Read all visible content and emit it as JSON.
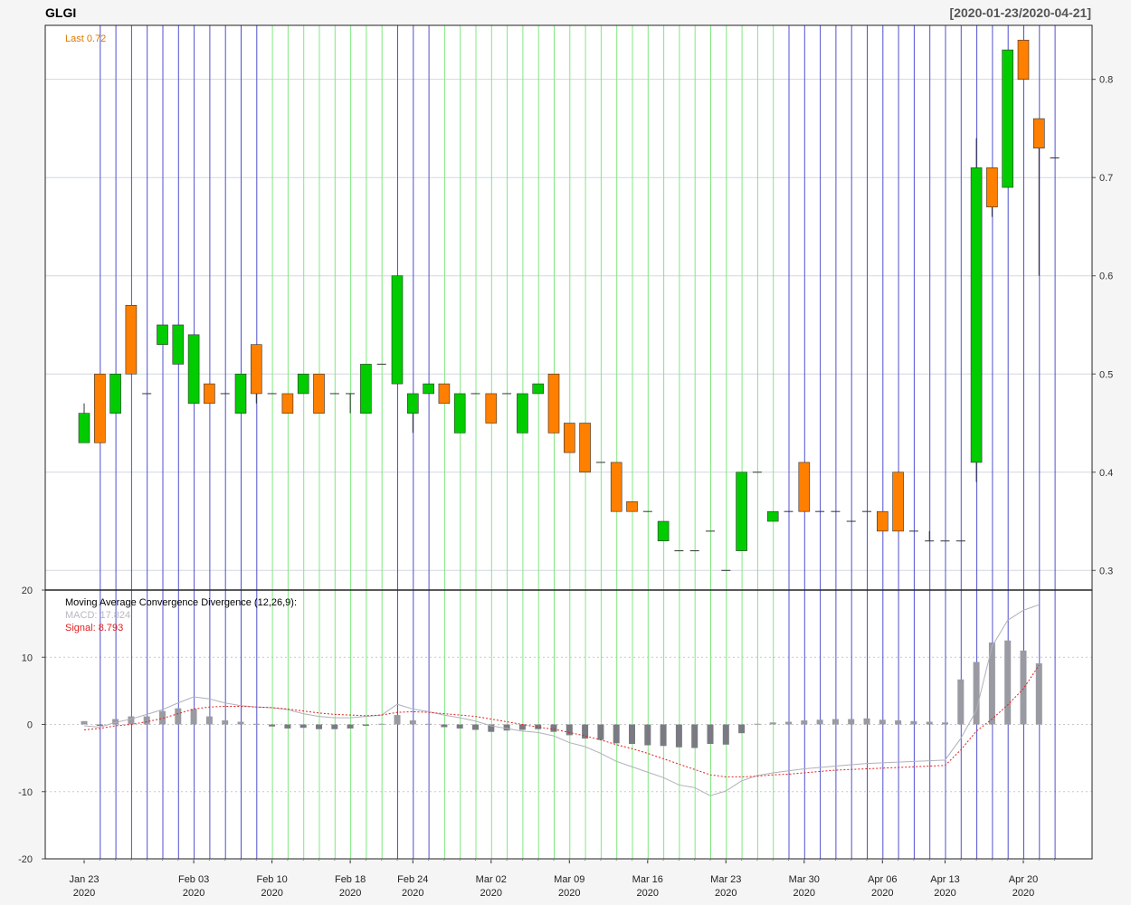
{
  "chart_data": {
    "type": "candlestick",
    "symbol": "GLGI",
    "range_label": "[2020-01-23/2020-04-21]",
    "last_label": "Last 0.72",
    "price_ylim": [
      0.28,
      0.855
    ],
    "price_ticks": [
      "0.3",
      "0.4",
      "0.5",
      "0.6",
      "0.7",
      "0.8"
    ],
    "candles": [
      {
        "o": 0.43,
        "h": 0.47,
        "l": 0.43,
        "c": 0.46
      },
      {
        "o": 0.5,
        "h": 0.5,
        "l": 0.43,
        "c": 0.43
      },
      {
        "o": 0.46,
        "h": 0.5,
        "l": 0.46,
        "c": 0.5
      },
      {
        "o": 0.57,
        "h": 0.57,
        "l": 0.5,
        "c": 0.5
      },
      {
        "o": 0.48,
        "h": 0.48,
        "l": 0.48,
        "c": 0.48
      },
      {
        "o": 0.53,
        "h": 0.55,
        "l": 0.53,
        "c": 0.55
      },
      {
        "o": 0.51,
        "h": 0.55,
        "l": 0.51,
        "c": 0.55
      },
      {
        "o": 0.47,
        "h": 0.54,
        "l": 0.47,
        "c": 0.54
      },
      {
        "o": 0.49,
        "h": 0.49,
        "l": 0.47,
        "c": 0.47
      },
      {
        "o": 0.48,
        "h": 0.48,
        "l": 0.48,
        "c": 0.48
      },
      {
        "o": 0.46,
        "h": 0.5,
        "l": 0.46,
        "c": 0.5
      },
      {
        "o": 0.53,
        "h": 0.53,
        "l": 0.47,
        "c": 0.48
      },
      {
        "o": 0.48,
        "h": 0.48,
        "l": 0.48,
        "c": 0.48
      },
      {
        "o": 0.48,
        "h": 0.48,
        "l": 0.46,
        "c": 0.46
      },
      {
        "o": 0.48,
        "h": 0.5,
        "l": 0.48,
        "c": 0.5
      },
      {
        "o": 0.5,
        "h": 0.5,
        "l": 0.46,
        "c": 0.46
      },
      {
        "o": 0.48,
        "h": 0.48,
        "l": 0.48,
        "c": 0.48
      },
      {
        "o": 0.48,
        "h": 0.48,
        "l": 0.46,
        "c": 0.48
      },
      {
        "o": 0.46,
        "h": 0.51,
        "l": 0.46,
        "c": 0.51
      },
      {
        "o": 0.51,
        "h": 0.51,
        "l": 0.51,
        "c": 0.51
      },
      {
        "o": 0.49,
        "h": 0.6,
        "l": 0.49,
        "c": 0.6
      },
      {
        "o": 0.46,
        "h": 0.48,
        "l": 0.44,
        "c": 0.48
      },
      {
        "o": 0.48,
        "h": 0.49,
        "l": 0.48,
        "c": 0.49
      },
      {
        "o": 0.49,
        "h": 0.49,
        "l": 0.47,
        "c": 0.47
      },
      {
        "o": 0.44,
        "h": 0.48,
        "l": 0.44,
        "c": 0.48
      },
      {
        "o": 0.48,
        "h": 0.48,
        "l": 0.48,
        "c": 0.48
      },
      {
        "o": 0.48,
        "h": 0.48,
        "l": 0.45,
        "c": 0.45
      },
      {
        "o": 0.48,
        "h": 0.48,
        "l": 0.48,
        "c": 0.48
      },
      {
        "o": 0.44,
        "h": 0.48,
        "l": 0.44,
        "c": 0.48
      },
      {
        "o": 0.48,
        "h": 0.49,
        "l": 0.48,
        "c": 0.49
      },
      {
        "o": 0.5,
        "h": 0.5,
        "l": 0.44,
        "c": 0.44
      },
      {
        "o": 0.45,
        "h": 0.45,
        "l": 0.42,
        "c": 0.42
      },
      {
        "o": 0.45,
        "h": 0.45,
        "l": 0.4,
        "c": 0.4
      },
      {
        "o": 0.41,
        "h": 0.41,
        "l": 0.41,
        "c": 0.41
      },
      {
        "o": 0.41,
        "h": 0.41,
        "l": 0.36,
        "c": 0.36
      },
      {
        "o": 0.37,
        "h": 0.37,
        "l": 0.36,
        "c": 0.36
      },
      {
        "o": 0.36,
        "h": 0.36,
        "l": 0.36,
        "c": 0.36
      },
      {
        "o": 0.33,
        "h": 0.35,
        "l": 0.33,
        "c": 0.35
      },
      {
        "o": 0.32,
        "h": 0.32,
        "l": 0.32,
        "c": 0.32
      },
      {
        "o": 0.32,
        "h": 0.32,
        "l": 0.32,
        "c": 0.32
      },
      {
        "o": 0.34,
        "h": 0.34,
        "l": 0.34,
        "c": 0.34
      },
      {
        "o": 0.3,
        "h": 0.3,
        "l": 0.3,
        "c": 0.3
      },
      {
        "o": 0.32,
        "h": 0.4,
        "l": 0.32,
        "c": 0.4
      },
      {
        "o": 0.4,
        "h": 0.4,
        "l": 0.4,
        "c": 0.4
      },
      {
        "o": 0.35,
        "h": 0.36,
        "l": 0.35,
        "c": 0.36
      },
      {
        "o": 0.36,
        "h": 0.36,
        "l": 0.36,
        "c": 0.36
      },
      {
        "o": 0.41,
        "h": 0.41,
        "l": 0.36,
        "c": 0.36
      },
      {
        "o": 0.36,
        "h": 0.36,
        "l": 0.36,
        "c": 0.36
      },
      {
        "o": 0.36,
        "h": 0.36,
        "l": 0.36,
        "c": 0.36
      },
      {
        "o": 0.35,
        "h": 0.35,
        "l": 0.35,
        "c": 0.35
      },
      {
        "o": 0.36,
        "h": 0.36,
        "l": 0.36,
        "c": 0.36
      },
      {
        "o": 0.36,
        "h": 0.36,
        "l": 0.34,
        "c": 0.34
      },
      {
        "o": 0.4,
        "h": 0.4,
        "l": 0.34,
        "c": 0.34
      },
      {
        "o": 0.34,
        "h": 0.34,
        "l": 0.34,
        "c": 0.34
      },
      {
        "o": 0.33,
        "h": 0.34,
        "l": 0.33,
        "c": 0.33
      },
      {
        "o": 0.33,
        "h": 0.33,
        "l": 0.33,
        "c": 0.33
      },
      {
        "o": 0.33,
        "h": 0.33,
        "l": 0.33,
        "c": 0.33
      },
      {
        "o": 0.41,
        "h": 0.74,
        "l": 0.39,
        "c": 0.71
      },
      {
        "o": 0.71,
        "h": 0.71,
        "l": 0.66,
        "c": 0.67
      },
      {
        "o": 0.69,
        "h": 0.83,
        "l": 0.69,
        "c": 0.83
      },
      {
        "o": 0.84,
        "h": 0.84,
        "l": 0.8,
        "c": 0.8
      },
      {
        "o": 0.76,
        "h": 0.76,
        "l": 0.6,
        "c": 0.73
      },
      {
        "o": 0.72,
        "h": 0.72,
        "l": 0.72,
        "c": 0.72
      }
    ],
    "x_ticks": [
      {
        "i": 0,
        "label": "Jan 23",
        "year": "2020"
      },
      {
        "i": 7,
        "label": "Feb 03",
        "year": "2020"
      },
      {
        "i": 12,
        "label": "Feb 10",
        "year": "2020"
      },
      {
        "i": 17,
        "label": "Feb 18",
        "year": "2020"
      },
      {
        "i": 21,
        "label": "Feb 24",
        "year": "2020"
      },
      {
        "i": 26,
        "label": "Mar 02",
        "year": "2020"
      },
      {
        "i": 31,
        "label": "Mar 09",
        "year": "2020"
      },
      {
        "i": 36,
        "label": "Mar 16",
        "year": "2020"
      },
      {
        "i": 41,
        "label": "Mar 23",
        "year": "2020"
      },
      {
        "i": 46,
        "label": "Mar 30",
        "year": "2020"
      },
      {
        "i": 51,
        "label": "Apr 06",
        "year": "2020"
      },
      {
        "i": 55,
        "label": "Apr 13",
        "year": "2020"
      },
      {
        "i": 60,
        "label": "Apr 20",
        "year": "2020"
      }
    ],
    "vlines": {
      "blue": [
        1,
        2,
        3,
        4,
        5,
        6,
        7,
        8,
        9,
        10,
        11,
        20,
        21,
        22,
        45,
        46,
        47,
        48,
        49,
        50,
        51,
        52,
        53,
        54,
        55,
        56,
        57,
        58,
        59,
        60,
        61,
        62
      ],
      "green": [
        12,
        13,
        14,
        15,
        16,
        17,
        18,
        19,
        23,
        24,
        25,
        26,
        27,
        28,
        29,
        30,
        31,
        32,
        33,
        34,
        35,
        36,
        37,
        38,
        39,
        40,
        41,
        42,
        43,
        44
      ]
    },
    "macd": {
      "title": "Moving Average Convergence Divergence (12,26,9):",
      "macd_label": "MACD: 17.824",
      "signal_label": "Signal: 8.793",
      "ylim": [
        -20,
        20
      ],
      "ticks": [
        "-20",
        "-10",
        "0",
        "10",
        "20"
      ],
      "hist": [
        0.5,
        -0.2,
        0.8,
        1.2,
        1.2,
        2.0,
        2.4,
        2.3,
        1.2,
        0.6,
        0.4,
        0.1,
        -0.3,
        -0.6,
        -0.5,
        -0.7,
        -0.7,
        -0.6,
        -0.2,
        0.1,
        1.4,
        0.6,
        0.1,
        -0.4,
        -0.6,
        -0.8,
        -1.1,
        -0.9,
        -0.8,
        -0.7,
        -1.1,
        -1.6,
        -2.1,
        -2.3,
        -2.8,
        -2.9,
        -3.1,
        -3.2,
        -3.4,
        -3.5,
        -2.9,
        -3.0,
        -1.3,
        0.1,
        0.3,
        0.4,
        0.6,
        0.7,
        0.8,
        0.8,
        0.9,
        0.7,
        0.6,
        0.5,
        0.4,
        0.3,
        6.7,
        9.3,
        12.2,
        12.5,
        11.0,
        9.1
      ],
      "macd_line": [
        -0.2,
        -0.4,
        0.3,
        0.8,
        1.5,
        2.2,
        3.2,
        4.1,
        3.8,
        3.2,
        2.8,
        2.6,
        2.5,
        2.2,
        1.6,
        1.2,
        1.0,
        1.0,
        1.2,
        1.4,
        3.0,
        2.3,
        1.9,
        1.4,
        1.0,
        0.5,
        -0.2,
        -0.6,
        -1.0,
        -1.2,
        -1.7,
        -2.7,
        -3.3,
        -4.3,
        -5.5,
        -6.3,
        -7.1,
        -7.9,
        -9.0,
        -9.4,
        -10.6,
        -9.9,
        -8.4,
        -7.6,
        -7.2,
        -6.9,
        -6.6,
        -6.4,
        -6.2,
        -6.0,
        -5.8,
        -5.7,
        -5.6,
        -5.5,
        -5.4,
        -5.3,
        -2.1,
        2.1,
        11.6,
        15.5,
        17.0,
        17.8
      ],
      "signal_line": [
        -0.8,
        -0.6,
        -0.2,
        0.0,
        0.4,
        0.9,
        1.6,
        2.3,
        2.6,
        2.7,
        2.7,
        2.6,
        2.5,
        2.3,
        2.0,
        1.7,
        1.5,
        1.4,
        1.3,
        1.4,
        1.8,
        1.9,
        1.8,
        1.6,
        1.4,
        1.2,
        0.8,
        0.4,
        0.0,
        -0.4,
        -0.7,
        -1.2,
        -1.7,
        -2.3,
        -3.0,
        -3.6,
        -4.3,
        -5.1,
        -5.9,
        -6.7,
        -7.5,
        -7.8,
        -7.8,
        -7.7,
        -7.5,
        -7.4,
        -7.2,
        -7.0,
        -6.8,
        -6.7,
        -6.6,
        -6.5,
        -6.4,
        -6.3,
        -6.2,
        -6.1,
        -3.8,
        -1.0,
        0.8,
        2.9,
        5.3,
        8.8
      ]
    }
  },
  "colors": {
    "up": "#00cc00",
    "down": "#ff7f00",
    "blue_line": "#5050d0",
    "green_line": "#80e880",
    "grid": "#d0d8e0",
    "hist_pos": "#9a9aa2",
    "hist_neg": "#7a7a82",
    "macd_line": "#b0b0bc",
    "signal_line": "#e02020",
    "last_label": "#e07800"
  }
}
